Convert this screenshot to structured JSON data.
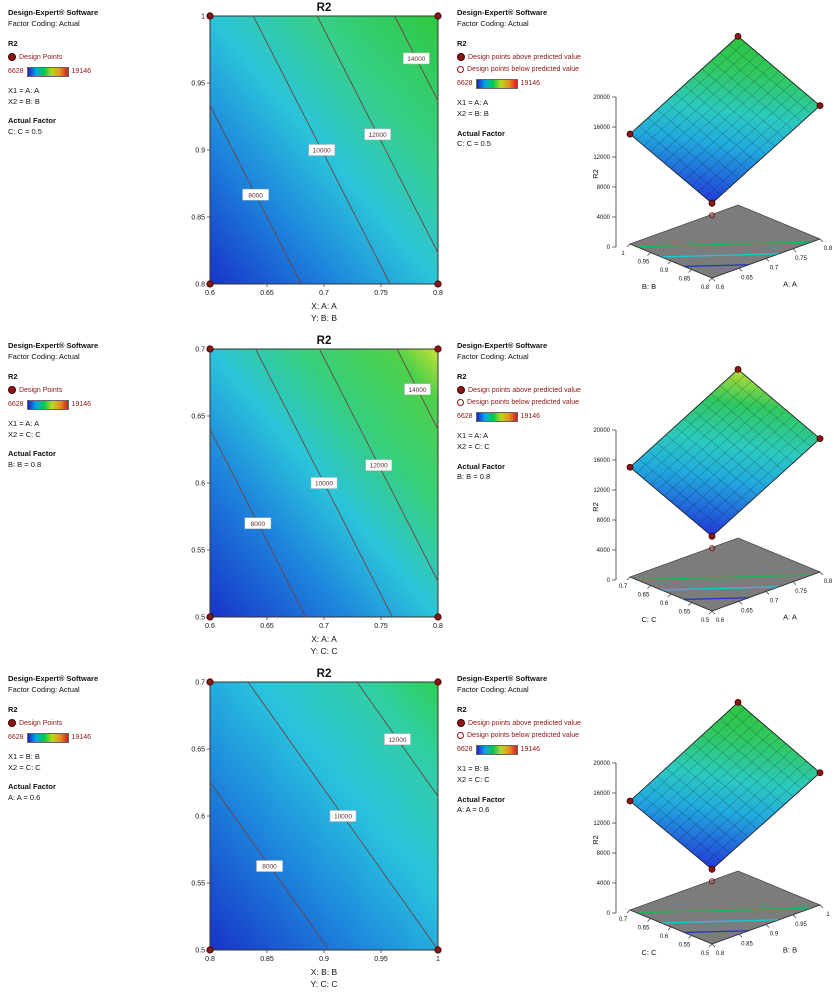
{
  "legends": [
    {
      "software": "Design-Expert® Software",
      "coding": "Factor Coding: Actual",
      "response": "R2",
      "points_label": "Design Points",
      "scale_min": "6628",
      "scale_max": "19146",
      "x1": "X1 = A: A",
      "x2": "X2 = B: B",
      "af_label": "Actual Factor",
      "af_value": "C: C = 0.5"
    },
    {
      "software": "Design-Expert® Software",
      "coding": "Factor Coding: Actual",
      "response": "R2",
      "points_above": "Design points above predicted value",
      "points_below": "Design points below predicted value",
      "scale_min": "6628",
      "scale_max": "19146",
      "x1": "X1 = A: A",
      "x2": "X2 = B: B",
      "af_label": "Actual Factor",
      "af_value": "C: C = 0.5"
    },
    {
      "software": "Design-Expert® Software",
      "coding": "Factor Coding: Actual",
      "response": "R2",
      "points_label": "Design Points",
      "scale_min": "6628",
      "scale_max": "19146",
      "x1": "X1 = A: A",
      "x2": "X2 = C: C",
      "af_label": "Actual Factor",
      "af_value": "B: B = 0.8"
    },
    {
      "software": "Design-Expert® Software",
      "coding": "Factor Coding: Actual",
      "response": "R2",
      "points_above": "Design points above predicted value",
      "points_below": "Design points below predicted value",
      "scale_min": "6628",
      "scale_max": "19146",
      "x1": "X1 = A: A",
      "x2": "X2 = C: C",
      "af_label": "Actual Factor",
      "af_value": "B: B = 0.8"
    },
    {
      "software": "Design-Expert® Software",
      "coding": "Factor Coding: Actual",
      "response": "R2",
      "points_label": "Design Points",
      "scale_min": "6628",
      "scale_max": "19146",
      "x1": "X1 = B: B",
      "x2": "X2 = C: C",
      "af_label": "Actual Factor",
      "af_value": "A: A = 0.6"
    },
    {
      "software": "Design-Expert® Software",
      "coding": "Factor Coding: Actual",
      "response": "R2",
      "points_above": "Design points above predicted value",
      "points_below": "Design points below predicted value",
      "scale_min": "6628",
      "scale_max": "19146",
      "x1": "X1 = B: B",
      "x2": "X2 = C: C",
      "af_label": "Actual Factor",
      "af_value": "A: A = 0.6"
    }
  ],
  "chart_data": [
    {
      "type": "heatmap",
      "subtype": "contour",
      "title": "R2",
      "xlabel": "X: A: A",
      "ylabel": "Y: B: B",
      "x_range": [
        0.6,
        0.8
      ],
      "y_range": [
        0.8,
        1.0
      ],
      "z_range": [
        6628,
        19146
      ],
      "x_ticks": [
        "0.6",
        "0.65",
        "0.7",
        "0.75",
        "0.8"
      ],
      "y_ticks": [
        "0.8",
        "0.85",
        "0.9",
        "0.95",
        "1"
      ],
      "contours": [
        {
          "label": "8000",
          "c": 0.4
        },
        {
          "label": "10000",
          "c": 0.79
        },
        {
          "label": "12000",
          "c": 1.07
        },
        {
          "label": "14000",
          "c": 1.41
        }
      ],
      "line_dir": {
        "a": 1.0,
        "b": 0.6
      },
      "gradient": [
        {
          "o": 0,
          "c": "#1733c8"
        },
        {
          "o": 0.28,
          "c": "#1e86dd"
        },
        {
          "o": 0.5,
          "c": "#2bc4da"
        },
        {
          "o": 0.72,
          "c": "#36cf8a"
        },
        {
          "o": 1,
          "c": "#2ec93e"
        }
      ],
      "design_points": [
        [
          0,
          0
        ],
        [
          1,
          0
        ],
        [
          0,
          1
        ],
        [
          1,
          1
        ]
      ]
    },
    {
      "type": "surface",
      "title": "R2",
      "zlabel": "R2",
      "z_ticks": [
        "0",
        "4000",
        "8000",
        "12000",
        "16000",
        "20000"
      ],
      "z_max": 20000,
      "z_range": [
        6628,
        19146
      ],
      "left_axis": {
        "label": "B: B",
        "ticks": [
          "1",
          "0.95",
          "0.9",
          "0.85",
          "0.8"
        ]
      },
      "right_axis": {
        "label": "A: A",
        "ticks": [
          "0.6",
          "0.65",
          "0.7",
          "0.75",
          "0.8"
        ]
      },
      "corner_z": {
        "front": 6628,
        "left": 11322,
        "right": 14452,
        "back": 19146
      },
      "top_color": "#2fc342"
    },
    {
      "type": "heatmap",
      "subtype": "contour",
      "title": "R2",
      "xlabel": "X: A: A",
      "ylabel": "Y: C: C",
      "x_range": [
        0.6,
        0.8
      ],
      "y_range": [
        0.5,
        0.7
      ],
      "z_range": [
        6628,
        19146
      ],
      "x_ticks": [
        "0.6",
        "0.65",
        "0.7",
        "0.75",
        "0.8"
      ],
      "y_ticks": [
        "0.5",
        "0.55",
        "0.6",
        "0.65",
        "0.7"
      ],
      "contours": [
        {
          "label": "8000",
          "c": 0.42
        },
        {
          "label": "10000",
          "c": 0.8
        },
        {
          "label": "12000",
          "c": 1.08
        },
        {
          "label": "14000",
          "c": 1.42
        }
      ],
      "line_dir": {
        "a": 1.0,
        "b": 0.6
      },
      "gradient": [
        {
          "o": 0,
          "c": "#1733c8"
        },
        {
          "o": 0.3,
          "c": "#1e86dd"
        },
        {
          "o": 0.5,
          "c": "#2bc4da"
        },
        {
          "o": 0.7,
          "c": "#36cf7a"
        },
        {
          "o": 0.9,
          "c": "#4ed04a"
        },
        {
          "o": 1,
          "c": "#c3e335"
        }
      ],
      "design_points": [
        [
          0,
          0
        ],
        [
          1,
          0
        ],
        [
          0,
          1
        ],
        [
          1,
          1
        ]
      ]
    },
    {
      "type": "surface",
      "title": "R2",
      "zlabel": "R2",
      "z_ticks": [
        "0",
        "4000",
        "8000",
        "12000",
        "16000",
        "20000"
      ],
      "z_max": 20000,
      "z_range": [
        6628,
        19146
      ],
      "left_axis": {
        "label": "C: C",
        "ticks": [
          "0.7",
          "0.65",
          "0.6",
          "0.55",
          "0.5"
        ]
      },
      "right_axis": {
        "label": "A: A",
        "ticks": [
          "0.6",
          "0.65",
          "0.7",
          "0.75",
          "0.8"
        ]
      },
      "corner_z": {
        "front": 6628,
        "left": 11300,
        "right": 14450,
        "back": 19146
      },
      "top_color": "#b8dc32"
    },
    {
      "type": "heatmap",
      "subtype": "contour",
      "title": "R2",
      "xlabel": "X: B: B",
      "ylabel": "Y: C: C",
      "x_range": [
        0.8,
        1.0
      ],
      "y_range": [
        0.5,
        0.7
      ],
      "z_range": [
        6628,
        19146
      ],
      "x_ticks": [
        "0.8",
        "0.85",
        "0.9",
        "0.95",
        "1"
      ],
      "y_ticks": [
        "0.5",
        "0.55",
        "0.6",
        "0.65",
        "0.7"
      ],
      "contours": [
        {
          "label": "8000",
          "c": 0.47
        },
        {
          "label": "10000",
          "c": 0.9
        },
        {
          "label": "12000",
          "c": 1.33
        }
      ],
      "line_dir": {
        "a": 0.9,
        "b": 0.75
      },
      "gradient": [
        {
          "o": 0,
          "c": "#1733c8"
        },
        {
          "o": 0.35,
          "c": "#1e8add"
        },
        {
          "o": 0.6,
          "c": "#29c3dd"
        },
        {
          "o": 0.85,
          "c": "#30cfa0"
        },
        {
          "o": 1,
          "c": "#2fcf55"
        }
      ],
      "design_points": [
        [
          0,
          0
        ],
        [
          1,
          0
        ],
        [
          0,
          1
        ],
        [
          1,
          1
        ]
      ]
    },
    {
      "type": "surface",
      "title": "R2",
      "zlabel": "R2",
      "z_ticks": [
        "0",
        "4000",
        "8000",
        "12000",
        "16000",
        "20000"
      ],
      "z_max": 20000,
      "z_range": [
        6628,
        19146
      ],
      "left_axis": {
        "label": "C: C",
        "ticks": [
          "0.7",
          "0.65",
          "0.6",
          "0.55",
          "0.5"
        ]
      },
      "right_axis": {
        "label": "B: B",
        "ticks": [
          "0.8",
          "0.85",
          "0.9",
          "0.95",
          "1"
        ]
      },
      "corner_z": {
        "front": 6628,
        "left": 11200,
        "right": 14300,
        "back": 19146
      },
      "top_color": "#2fc342"
    }
  ]
}
